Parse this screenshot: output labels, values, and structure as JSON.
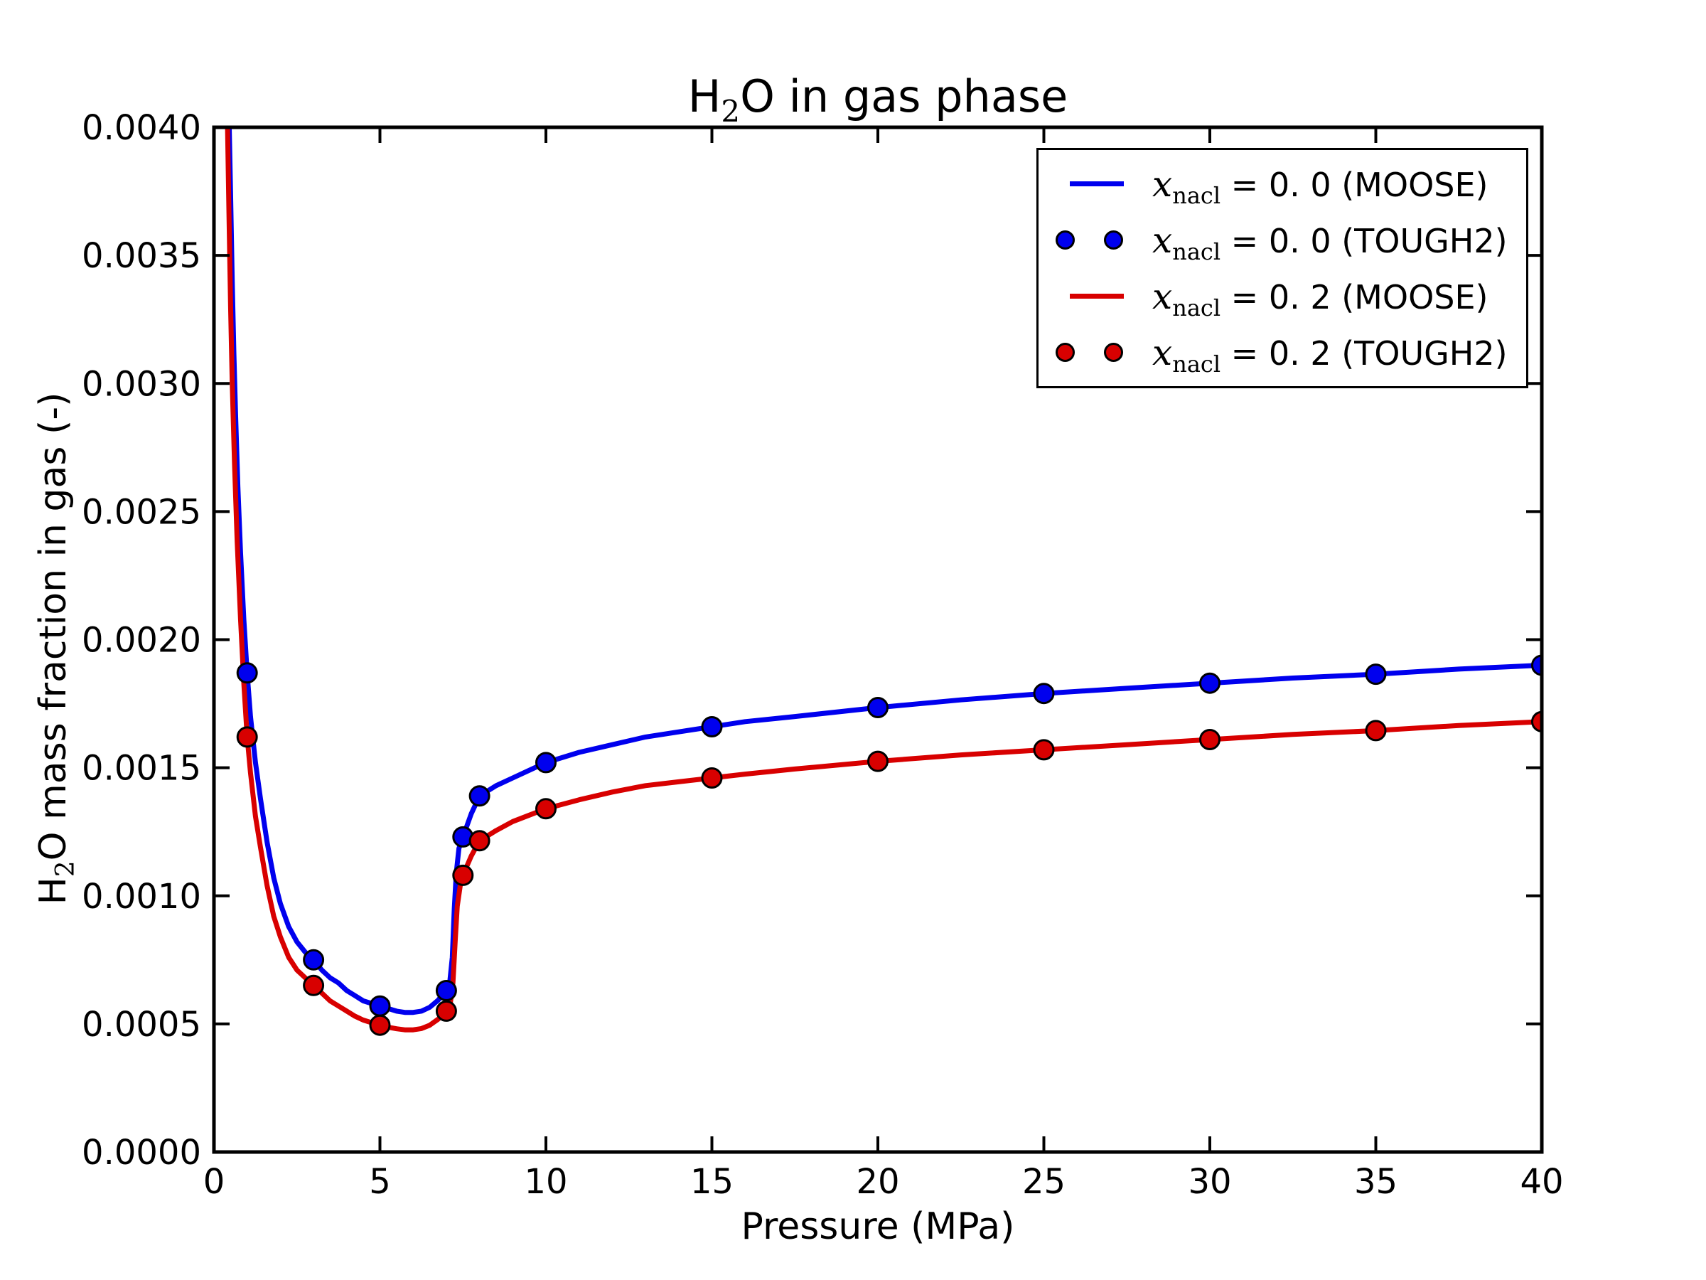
{
  "figure": {
    "background": "#ffffff"
  },
  "chart_data": {
    "type": "line",
    "title": {
      "prefix": "H",
      "sub": "2",
      "suffix": "O in gas phase"
    },
    "xlabel": "Pressure (MPa)",
    "ylabel": {
      "prefix": "H",
      "sub": "2",
      "suffix": "O mass fraction in gas (-)"
    },
    "xlim": [
      0,
      40
    ],
    "ylim": [
      0.0,
      0.004
    ],
    "grid": false,
    "legend_position": "upper right",
    "x_ticks": {
      "values": [
        0,
        5,
        10,
        15,
        20,
        25,
        30,
        35,
        40
      ],
      "labels": [
        "0",
        "5",
        "10",
        "15",
        "20",
        "25",
        "30",
        "35",
        "40"
      ]
    },
    "y_ticks": {
      "values": [
        0.0,
        0.0005,
        0.001,
        0.0015,
        0.002,
        0.0025,
        0.003,
        0.0035,
        0.004
      ],
      "labels": [
        "0.0000",
        "0.0005",
        "0.0010",
        "0.0015",
        "0.0020",
        "0.0025",
        "0.0030",
        "0.0035",
        "0.0040"
      ]
    },
    "colors": {
      "blue": "#0000ee",
      "red": "#d80000",
      "marker_edge": "#000000",
      "axes": "#000000"
    },
    "series": [
      {
        "name": "x_nacl = 0.0 (MOOSE)",
        "type": "line",
        "color_key": "blue",
        "points": [
          [
            0.46,
            0.004
          ],
          [
            0.5,
            0.00374
          ],
          [
            0.55,
            0.0034
          ],
          [
            0.6,
            0.00312
          ],
          [
            0.65,
            0.00288
          ],
          [
            0.72,
            0.0026
          ],
          [
            0.8,
            0.00234
          ],
          [
            0.9,
            0.00208
          ],
          [
            1.0,
            0.00187
          ],
          [
            1.1,
            0.0017
          ],
          [
            1.25,
            0.00152
          ],
          [
            1.4,
            0.00138
          ],
          [
            1.6,
            0.00121
          ],
          [
            1.8,
            0.00107
          ],
          [
            2.0,
            0.00097
          ],
          [
            2.25,
            0.00088
          ],
          [
            2.5,
            0.00082
          ],
          [
            2.75,
            0.00078
          ],
          [
            3.0,
            0.00075
          ],
          [
            3.25,
            0.00071
          ],
          [
            3.5,
            0.00068
          ],
          [
            3.75,
            0.00066
          ],
          [
            4.0,
            0.00063
          ],
          [
            4.25,
            0.00061
          ],
          [
            4.5,
            0.00059
          ],
          [
            4.75,
            0.00058
          ],
          [
            5.0,
            0.00057
          ],
          [
            5.25,
            0.00056
          ],
          [
            5.5,
            0.00055
          ],
          [
            5.75,
            0.000545
          ],
          [
            6.0,
            0.000545
          ],
          [
            6.25,
            0.00055
          ],
          [
            6.5,
            0.000565
          ],
          [
            6.75,
            0.000592
          ],
          [
            7.0,
            0.00063
          ],
          [
            7.1,
            0.00066
          ],
          [
            7.18,
            0.00076
          ],
          [
            7.24,
            0.00095
          ],
          [
            7.3,
            0.00109
          ],
          [
            7.38,
            0.001185
          ],
          [
            7.5,
            0.00123
          ],
          [
            7.75,
            0.00132
          ],
          [
            8.0,
            0.00139
          ],
          [
            8.5,
            0.00143
          ],
          [
            9.0,
            0.00146
          ],
          [
            9.5,
            0.00149
          ],
          [
            10.0,
            0.00152
          ],
          [
            11.0,
            0.00156
          ],
          [
            12.0,
            0.00159
          ],
          [
            13.0,
            0.00162
          ],
          [
            14.0,
            0.00164
          ],
          [
            15.0,
            0.00166
          ],
          [
            16.0,
            0.00168
          ],
          [
            17.5,
            0.0017
          ],
          [
            20.0,
            0.001735
          ],
          [
            22.5,
            0.001765
          ],
          [
            25.0,
            0.00179
          ],
          [
            27.5,
            0.00181
          ],
          [
            30.0,
            0.00183
          ],
          [
            32.5,
            0.00185
          ],
          [
            35.0,
            0.001865
          ],
          [
            37.5,
            0.001885
          ],
          [
            40.0,
            0.0019
          ]
        ]
      },
      {
        "name": "x_nacl = 0.0 (TOUGH2)",
        "type": "scatter",
        "color_key": "blue",
        "points": [
          [
            1,
            0.00187
          ],
          [
            3,
            0.00075
          ],
          [
            5,
            0.00057
          ],
          [
            7,
            0.00063
          ],
          [
            7.5,
            0.00123
          ],
          [
            8,
            0.00139
          ],
          [
            10,
            0.00152
          ],
          [
            15,
            0.00166
          ],
          [
            20,
            0.001735
          ],
          [
            25,
            0.00179
          ],
          [
            30,
            0.00183
          ],
          [
            35,
            0.001865
          ],
          [
            40,
            0.0019
          ]
        ]
      },
      {
        "name": "x_nacl = 0.2 (MOOSE)",
        "type": "line",
        "color_key": "red",
        "points": [
          [
            0.41,
            0.004
          ],
          [
            0.45,
            0.00368
          ],
          [
            0.5,
            0.0033
          ],
          [
            0.55,
            0.003
          ],
          [
            0.62,
            0.00268
          ],
          [
            0.7,
            0.00238
          ],
          [
            0.8,
            0.00208
          ],
          [
            0.9,
            0.00183
          ],
          [
            1.0,
            0.00162
          ],
          [
            1.1,
            0.00148
          ],
          [
            1.25,
            0.00131
          ],
          [
            1.4,
            0.00119
          ],
          [
            1.6,
            0.00104
          ],
          [
            1.8,
            0.00092
          ],
          [
            2.0,
            0.00084
          ],
          [
            2.25,
            0.00076
          ],
          [
            2.5,
            0.00071
          ],
          [
            2.75,
            0.00068
          ],
          [
            3.0,
            0.00065
          ],
          [
            3.25,
            0.00062
          ],
          [
            3.5,
            0.00059
          ],
          [
            3.75,
            0.00057
          ],
          [
            4.0,
            0.00055
          ],
          [
            4.25,
            0.00053
          ],
          [
            4.5,
            0.000515
          ],
          [
            4.75,
            0.000505
          ],
          [
            5.0,
            0.000495
          ],
          [
            5.25,
            0.000487
          ],
          [
            5.5,
            0.000481
          ],
          [
            5.75,
            0.000477
          ],
          [
            6.0,
            0.000477
          ],
          [
            6.25,
            0.000482
          ],
          [
            6.5,
            0.000495
          ],
          [
            6.75,
            0.000518
          ],
          [
            7.0,
            0.00055
          ],
          [
            7.12,
            0.00058
          ],
          [
            7.2,
            0.00066
          ],
          [
            7.27,
            0.00083
          ],
          [
            7.33,
            0.00096
          ],
          [
            7.42,
            0.00104
          ],
          [
            7.5,
            0.00108
          ],
          [
            7.75,
            0.001155
          ],
          [
            8.0,
            0.001215
          ],
          [
            8.5,
            0.001255
          ],
          [
            9.0,
            0.00129
          ],
          [
            9.5,
            0.001315
          ],
          [
            10.0,
            0.00134
          ],
          [
            11.0,
            0.001375
          ],
          [
            12.0,
            0.001405
          ],
          [
            13.0,
            0.00143
          ],
          [
            14.0,
            0.001445
          ],
          [
            15.0,
            0.00146
          ],
          [
            16.0,
            0.001475
          ],
          [
            17.5,
            0.001495
          ],
          [
            20.0,
            0.001525
          ],
          [
            22.5,
            0.00155
          ],
          [
            25.0,
            0.00157
          ],
          [
            27.5,
            0.00159
          ],
          [
            30.0,
            0.00161
          ],
          [
            32.5,
            0.00163
          ],
          [
            35.0,
            0.001645
          ],
          [
            37.5,
            0.001665
          ],
          [
            40.0,
            0.00168
          ]
        ]
      },
      {
        "name": "x_nacl = 0.2 (TOUGH2)",
        "type": "scatter",
        "color_key": "red",
        "points": [
          [
            1,
            0.00162
          ],
          [
            3,
            0.00065
          ],
          [
            5,
            0.000495
          ],
          [
            7,
            0.00055
          ],
          [
            7.5,
            0.00108
          ],
          [
            8,
            0.001215
          ],
          [
            10,
            0.00134
          ],
          [
            15,
            0.00146
          ],
          [
            20,
            0.001525
          ],
          [
            25,
            0.00157
          ],
          [
            30,
            0.00161
          ],
          [
            35,
            0.001645
          ],
          [
            40,
            0.00168
          ]
        ]
      }
    ],
    "legend_entries": [
      {
        "swatch": "line",
        "color_key": "blue",
        "var": "x",
        "sub": "nacl",
        "rest": " = 0. 0 (MOOSE)"
      },
      {
        "swatch": "markers",
        "color_key": "blue",
        "var": "x",
        "sub": "nacl",
        "rest": " = 0. 0 (TOUGH2)"
      },
      {
        "swatch": "line",
        "color_key": "red",
        "var": "x",
        "sub": "nacl",
        "rest": " = 0. 2 (MOOSE)"
      },
      {
        "swatch": "markers",
        "color_key": "red",
        "var": "x",
        "sub": "nacl",
        "rest": " = 0. 2 (TOUGH2)"
      }
    ]
  }
}
